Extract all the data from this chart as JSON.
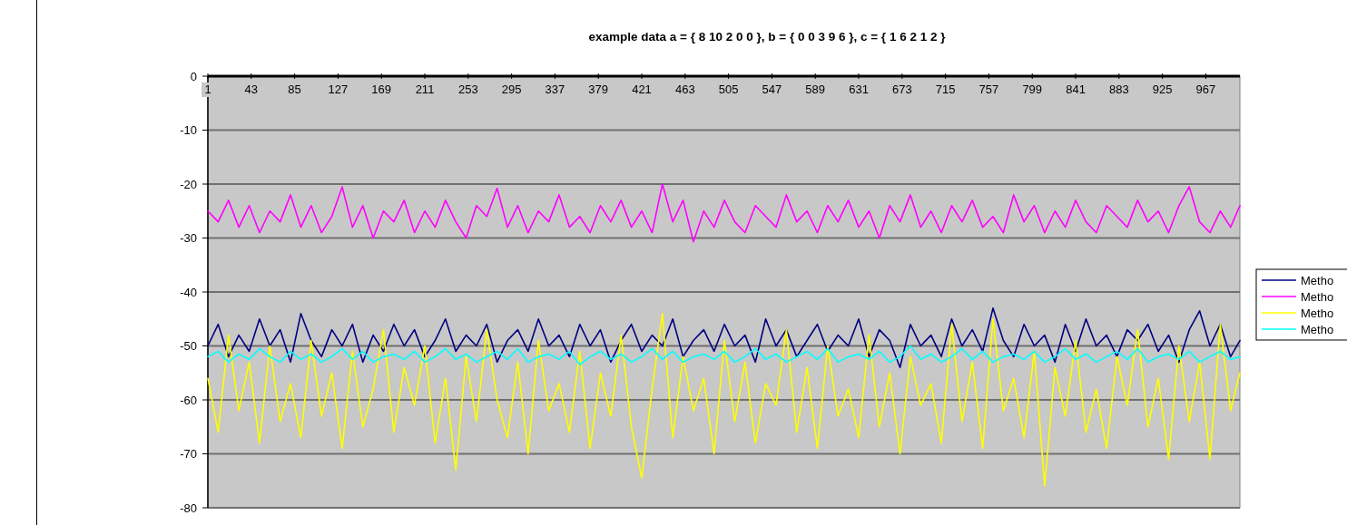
{
  "chart_data": {
    "type": "line",
    "title": "example data a = { 8 10 2 0 0 }, b = { 0 0 3 9 6 }, c = { 1 6 2 1 2 }",
    "x": [
      1,
      11,
      21,
      31,
      41,
      51,
      61,
      71,
      81,
      91,
      101,
      111,
      121,
      131,
      141,
      151,
      161,
      171,
      181,
      191,
      201,
      211,
      221,
      231,
      241,
      251,
      261,
      271,
      281,
      291,
      301,
      311,
      321,
      331,
      341,
      351,
      361,
      371,
      381,
      391,
      401,
      411,
      421,
      431,
      441,
      451,
      461,
      471,
      481,
      491,
      501,
      511,
      521,
      531,
      541,
      551,
      561,
      571,
      581,
      591,
      601,
      611,
      621,
      631,
      641,
      651,
      661,
      671,
      681,
      691,
      701,
      711,
      721,
      731,
      741,
      751,
      761,
      771,
      781,
      791,
      801,
      811,
      821,
      831,
      841,
      851,
      861,
      871,
      881,
      891,
      901,
      911,
      921,
      931,
      941,
      951,
      961,
      971,
      981,
      991,
      1000
    ],
    "xlim": [
      1,
      1000
    ],
    "xticks": [
      1,
      43,
      85,
      127,
      169,
      211,
      253,
      295,
      337,
      379,
      421,
      463,
      505,
      547,
      589,
      631,
      673,
      715,
      757,
      799,
      841,
      883,
      925,
      967
    ],
    "ylim": [
      -80,
      0
    ],
    "yticks": [
      0,
      -10,
      -20,
      -30,
      -40,
      -50,
      -60,
      -70,
      -80
    ],
    "grid": "y",
    "legend": "right",
    "series": [
      {
        "name": "Metho",
        "color": "#000080",
        "values": [
          -50,
          -46,
          -52,
          -48,
          -51,
          -45,
          -50,
          -47,
          -53,
          -44,
          -49,
          -52,
          -47,
          -50,
          -46,
          -53,
          -48,
          -51,
          -46,
          -50,
          -47,
          -52,
          -49,
          -45,
          -51,
          -48,
          -50,
          -46,
          -53,
          -49,
          -47,
          -51,
          -45,
          -50,
          -48,
          -52,
          -46,
          -50,
          -47,
          -53,
          -49,
          -46,
          -51,
          -48,
          -50,
          -45,
          -52,
          -49,
          -47,
          -51,
          -46,
          -50,
          -48,
          -53,
          -45,
          -50,
          -47,
          -52,
          -49,
          -46,
          -51,
          -48,
          -50,
          -45,
          -52,
          -47,
          -49,
          -54,
          -46,
          -50,
          -48,
          -52,
          -45,
          -50,
          -47,
          -51,
          -43,
          -49,
          -52,
          -46,
          -50,
          -48,
          -53,
          -46,
          -51,
          -45,
          -50,
          -48,
          -52,
          -47,
          -49,
          -46,
          -51,
          -48,
          -53,
          -47,
          -43.5,
          -50,
          -46,
          -52,
          -49
        ]
      },
      {
        "name": "Metho",
        "color": "#ff00ff",
        "values": [
          -25,
          -27,
          -23,
          -28,
          -24,
          -29,
          -25,
          -27,
          -22,
          -28,
          -24,
          -29,
          -26,
          -20.5,
          -28,
          -24,
          -30,
          -25,
          -27,
          -23,
          -29,
          -25,
          -28,
          -23,
          -27,
          -30,
          -24,
          -26,
          -20.8,
          -28,
          -24,
          -29,
          -25,
          -27,
          -22,
          -28,
          -26,
          -29,
          -24,
          -27,
          -23,
          -28,
          -25,
          -29,
          -20,
          -27,
          -23,
          -30.7,
          -25,
          -28,
          -23,
          -27,
          -29,
          -24,
          -26,
          -28,
          -22,
          -27,
          -25,
          -29,
          -24,
          -27,
          -23,
          -28,
          -25,
          -30,
          -24,
          -27,
          -22,
          -28,
          -25,
          -29,
          -24,
          -27,
          -23,
          -28,
          -26,
          -29,
          -22,
          -27,
          -24,
          -29,
          -25,
          -28,
          -23,
          -27,
          -29,
          -24,
          -26,
          -28,
          -23,
          -27,
          -25,
          -29,
          -24,
          -20.5,
          -27,
          -29,
          -25,
          -28,
          -24
        ]
      },
      {
        "name": "Metho",
        "color": "#ffff00",
        "values": [
          -56,
          -66,
          -48,
          -62,
          -53,
          -68,
          -50,
          -64,
          -57,
          -67,
          -49,
          -63,
          -55,
          -69,
          -51,
          -65,
          -58,
          -47,
          -66,
          -54,
          -61,
          -50,
          -68,
          -56,
          -73,
          -52,
          -64,
          -47,
          -60,
          -67,
          -53,
          -70,
          -49,
          -62,
          -57,
          -66,
          -51,
          -69,
          -55,
          -63,
          -48,
          -65,
          -74.5,
          -58,
          -44,
          -67,
          -52,
          -62,
          -56,
          -70,
          -49,
          -64,
          -53,
          -68,
          -57,
          -61,
          -47,
          -66,
          -54,
          -69,
          -50,
          -63,
          -58,
          -67,
          -48,
          -65,
          -55,
          -70,
          -52,
          -61,
          -57,
          -68,
          -46,
          -64,
          -53,
          -69,
          -45,
          -62,
          -56,
          -67,
          -51,
          -76,
          -54,
          -63,
          -49,
          -66,
          -58,
          -69,
          -52,
          -61,
          -47,
          -65,
          -56,
          -71,
          -50,
          -64,
          -53,
          -71,
          -46,
          -62,
          -55
        ]
      },
      {
        "name": "Metho",
        "color": "#00ffff",
        "values": [
          -52,
          -51,
          -53,
          -51.5,
          -52.5,
          -50.5,
          -52,
          -53,
          -51,
          -52.5,
          -51.5,
          -53,
          -52,
          -50.5,
          -52.5,
          -51,
          -53,
          -52,
          -51.5,
          -52.5,
          -51,
          -53,
          -52,
          -50.5,
          -52.5,
          -51.5,
          -53,
          -52,
          -51,
          -52.5,
          -50.5,
          -53,
          -52,
          -51.5,
          -52.5,
          -51,
          -53.5,
          -52,
          -51,
          -52.5,
          -51.5,
          -53,
          -52,
          -50.5,
          -52.5,
          -51,
          -53,
          -52,
          -51.5,
          -52.5,
          -51,
          -53,
          -52,
          -50.5,
          -52.5,
          -51.5,
          -53,
          -52,
          -51,
          -52.5,
          -50.5,
          -53,
          -52,
          -51.5,
          -52.5,
          -51,
          -53,
          -52,
          -50,
          -52.5,
          -51.5,
          -53,
          -52,
          -50.5,
          -52.5,
          -51,
          -53,
          -52,
          -51.5,
          -52.5,
          -51,
          -53,
          -52,
          -50.5,
          -52.5,
          -51.5,
          -53,
          -52,
          -51,
          -52.5,
          -50.5,
          -53,
          -52,
          -51.5,
          -52.5,
          -51,
          -53,
          -52,
          -51,
          -52.5,
          -52
        ]
      }
    ]
  }
}
